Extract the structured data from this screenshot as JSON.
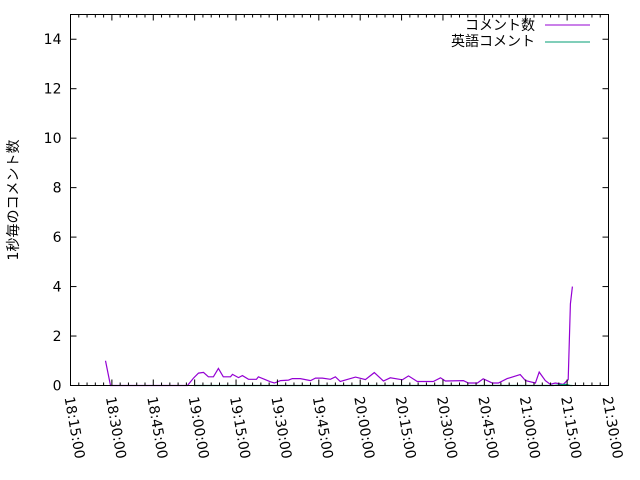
{
  "chart_data": {
    "type": "line",
    "title": "",
    "xlabel": "",
    "ylabel": "1秒毎のコメント数",
    "xlim": [
      "18:15:00",
      "21:30:00"
    ],
    "ylim": [
      0,
      15
    ],
    "xticks": [
      "18:15:00",
      "18:30:00",
      "18:45:00",
      "19:00:00",
      "19:15:00",
      "19:30:00",
      "19:45:00",
      "20:00:00",
      "20:15:00",
      "20:30:00",
      "20:45:00",
      "21:00:00",
      "21:15:00",
      "21:30:00"
    ],
    "yticks": [
      "0",
      "2",
      "4",
      "6",
      "8",
      "10",
      "12",
      "14"
    ],
    "grid": false,
    "legend_position": "top-right",
    "series": [
      {
        "name": "コメント数",
        "color": "#9400d3",
        "points": [
          [
            "18:27:41",
            1.0
          ],
          [
            "18:29:30",
            0
          ],
          [
            "18:51:14",
            0
          ],
          [
            "18:54:08",
            0
          ],
          [
            "18:55:56",
            0
          ],
          [
            "18:57:24",
            0
          ],
          [
            "18:59:34",
            0.3
          ],
          [
            "19:01:24",
            0.5
          ],
          [
            "19:03:12",
            0.53
          ],
          [
            "19:05:00",
            0.35
          ],
          [
            "19:06:48",
            0.35
          ],
          [
            "19:08:36",
            0.69
          ],
          [
            "19:10:24",
            0.35
          ],
          [
            "19:13:00",
            0.35
          ],
          [
            "19:13:42",
            0.45
          ],
          [
            "19:15:54",
            0.32
          ],
          [
            "19:17:18",
            0.4
          ],
          [
            "19:19:30",
            0.25
          ],
          [
            "19:22:24",
            0.25
          ],
          [
            "19:23:06",
            0.35
          ],
          [
            "19:25:18",
            0.25
          ],
          [
            "19:27:30",
            0.15
          ],
          [
            "19:28:54",
            0.1
          ],
          [
            "19:31:06",
            0.2
          ],
          [
            "19:34:00",
            0.22
          ],
          [
            "19:35:24",
            0.28
          ],
          [
            "19:38:18",
            0.28
          ],
          [
            "19:42:00",
            0.2
          ],
          [
            "19:43:48",
            0.3
          ],
          [
            "19:46:18",
            0.3
          ],
          [
            "19:49:12",
            0.25
          ],
          [
            "19:51:00",
            0.35
          ],
          [
            "19:52:48",
            0.16
          ],
          [
            "19:58:18",
            0.34
          ],
          [
            "20:01:54",
            0.24
          ],
          [
            "20:05:06",
            0.52
          ],
          [
            "20:08:24",
            0.18
          ],
          [
            "20:10:54",
            0.31
          ],
          [
            "20:15:18",
            0.23
          ],
          [
            "20:17:30",
            0.39
          ],
          [
            "20:20:42",
            0.16
          ],
          [
            "20:26:30",
            0.16
          ],
          [
            "20:29:06",
            0.31
          ],
          [
            "20:30:54",
            0.18
          ],
          [
            "20:37:24",
            0.2
          ],
          [
            "20:39:12",
            0.1
          ],
          [
            "20:42:30",
            0.1
          ],
          [
            "20:44:36",
            0.27
          ],
          [
            "20:47:54",
            0.1
          ],
          [
            "20:50:06",
            0.1
          ],
          [
            "20:53:18",
            0.28
          ],
          [
            "20:58:00",
            0.44
          ],
          [
            "20:59:54",
            0.2
          ],
          [
            "21:03:30",
            0.1
          ],
          [
            "21:04:54",
            0.54
          ],
          [
            "21:07:06",
            0.2
          ],
          [
            "21:08:54",
            0.05
          ],
          [
            "21:10:42",
            0.1
          ],
          [
            "21:13:36",
            0.05
          ],
          [
            "21:15:24",
            0.24
          ],
          [
            "21:16:12",
            3.3
          ],
          [
            "21:16:54",
            4.0
          ]
        ]
      },
      {
        "name": "英語コメント",
        "color": "#009e73",
        "points": [
          [
            "18:59:34",
            0
          ],
          [
            "19:13:00",
            0
          ],
          [
            "19:30:00",
            0
          ],
          [
            "19:50:00",
            0
          ],
          [
            "20:10:00",
            0
          ],
          [
            "20:30:00",
            0
          ],
          [
            "20:50:00",
            0
          ],
          [
            "21:10:00",
            0
          ],
          [
            "21:14:30",
            0.05
          ],
          [
            "21:16:12",
            0
          ],
          [
            "21:16:54",
            0
          ]
        ]
      }
    ]
  }
}
